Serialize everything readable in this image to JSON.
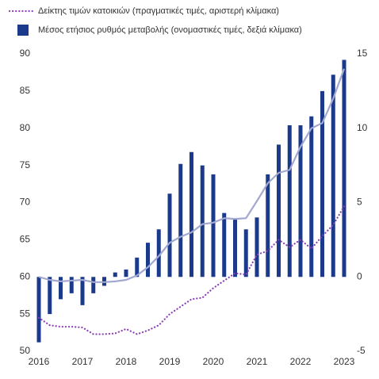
{
  "chart_data": {
    "type": "combo",
    "categories": [
      "2016",
      null,
      null,
      null,
      "2017",
      null,
      null,
      null,
      "2018",
      null,
      null,
      null,
      "2019",
      null,
      null,
      null,
      "2020",
      null,
      null,
      null,
      "2021",
      null,
      null,
      null,
      "2022",
      null,
      null,
      null,
      "2023"
    ],
    "ylim": [
      50,
      90
    ],
    "yticks": [
      50,
      55,
      60,
      65,
      70,
      75,
      80,
      85,
      90
    ],
    "y2lim": [
      -5,
      15
    ],
    "y2ticks": [
      -5,
      0,
      5,
      10,
      15
    ],
    "series": [
      {
        "name": "Δείκτης τιμών κατοικιών (πραγματικές τιμές, αριστερή κλίμακα)",
        "type": "line",
        "style": "dotted",
        "color": "#8a3fb5",
        "values": [
          54.5,
          53.5,
          53.3,
          53.3,
          53.2,
          52.3,
          52.3,
          52.4,
          53.0,
          52.3,
          52.8,
          53.5,
          55.0,
          56.0,
          57.0,
          57.2,
          58.5,
          59.5,
          60.5,
          60.3,
          63.0,
          63.5,
          65.0,
          64.0,
          65.0,
          63.8,
          65.5,
          67.0,
          69.5
        ]
      },
      {
        "name": "Μέσος ετήσιος ρυθμός μεταβολής (ονομαστικές τιμές, δεξιά κλίμακα)",
        "type": "bar",
        "axis": "y2",
        "color": "#1b3a8c",
        "values": [
          -4.4,
          -2.5,
          -1.5,
          -1.1,
          -1.9,
          -1.1,
          -0.6,
          0.3,
          0.5,
          1.3,
          2.3,
          3.2,
          5.6,
          7.6,
          8.4,
          7.5,
          6.9,
          4.3,
          3.9,
          3.2,
          4.0,
          6.9,
          8.9,
          10.2,
          10.2,
          10.8,
          12.5,
          13.6,
          14.6
        ]
      },
      {
        "type": "line",
        "style": "solid",
        "color": "#a2a8d0",
        "values": [
          60.0,
          59.6,
          59.4,
          59.5,
          59.6,
          59.3,
          59.3,
          59.4,
          59.6,
          60.2,
          61.3,
          62.8,
          64.6,
          65.4,
          66.0,
          67.1,
          67.3,
          67.9,
          67.8,
          67.9,
          70.2,
          72.6,
          74.0,
          74.4,
          77.5,
          80.0,
          80.7,
          84.0,
          88.0
        ]
      }
    ]
  }
}
